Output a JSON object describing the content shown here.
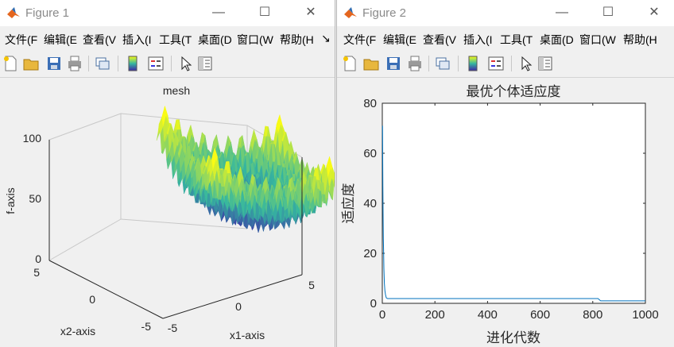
{
  "figure1": {
    "title": "Figure 1",
    "menu": [
      "文件(F",
      "编辑(E",
      "查看(V",
      "插入(I",
      "工具(T",
      "桌面(D",
      "窗口(W",
      "帮助(H"
    ],
    "menu_more": "↘",
    "plot": {
      "title": "mesh",
      "zlabel": "f-axis",
      "xlabel": "x1-axis",
      "ylabel": "x2-axis",
      "zticks": [
        "100",
        "50",
        "0"
      ],
      "xticks": [
        "-5",
        "0",
        "5"
      ],
      "yticks": [
        "5",
        "0",
        "-5"
      ]
    }
  },
  "figure2": {
    "title": "Figure 2",
    "menu": [
      "文件(F",
      "编辑(E",
      "查看(V",
      "插入(I",
      "工具(T",
      "桌面(D",
      "窗口(W",
      "帮助(H"
    ]
  },
  "colors": {
    "line": "#0072bd",
    "surface_low": "#3e26a8",
    "surface_mid": "#35b7a0",
    "surface_high": "#f9fb15"
  },
  "chart_data": [
    {
      "type": "surface",
      "title": "mesh",
      "xlabel": "x1-axis",
      "ylabel": "x2-axis",
      "zlabel": "f-axis",
      "xlim": [
        -5,
        5
      ],
      "ylim": [
        -5,
        5
      ],
      "zlim": [
        0,
        100
      ]
    },
    {
      "type": "line",
      "title": "最优个体适应度",
      "xlabel": "进化代数",
      "ylabel": "适应度",
      "xlim": [
        0,
        1000
      ],
      "ylim": [
        0,
        80
      ],
      "xticks": [
        0,
        200,
        400,
        600,
        800,
        1000
      ],
      "yticks": [
        0,
        20,
        40,
        60,
        80
      ],
      "series": [
        {
          "x": [
            1,
            2,
            3,
            4,
            5,
            6,
            8,
            10,
            12,
            15,
            20,
            30,
            50,
            100,
            200,
            400,
            600,
            800,
            820,
            830,
            1000
          ],
          "y": [
            71,
            47,
            35,
            26,
            20,
            14,
            8,
            5,
            3.5,
            2.2,
            1.9,
            1.9,
            1.9,
            1.9,
            1.9,
            1.9,
            1.9,
            1.9,
            1.9,
            1.0,
            1.0
          ]
        }
      ]
    }
  ]
}
